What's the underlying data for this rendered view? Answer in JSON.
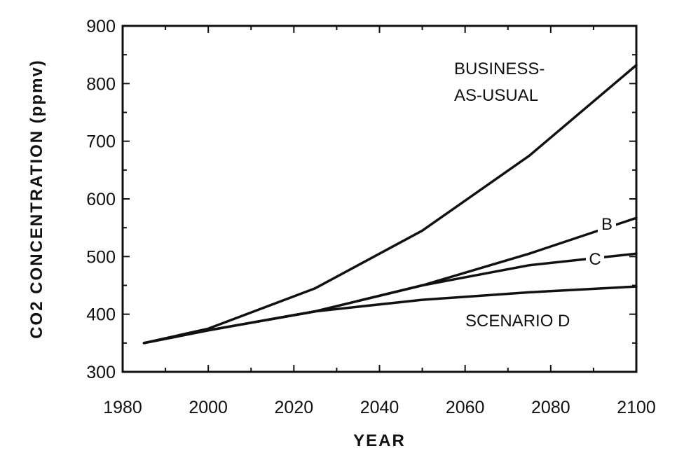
{
  "chart_data": {
    "type": "line",
    "title": "",
    "xlabel": "YEAR",
    "ylabel": "CO2  CONCENTRATION  (ppmv)",
    "xlim": [
      1980,
      2100
    ],
    "ylim": [
      300,
      900
    ],
    "xticks": [
      1980,
      2000,
      2020,
      2040,
      2060,
      2080,
      2100
    ],
    "yticks": [
      300,
      400,
      500,
      600,
      700,
      800,
      900
    ],
    "grid": false,
    "series": [
      {
        "name": "BUSINESS-AS-USUAL",
        "x": [
          1985,
          2000,
          2025,
          2050,
          2075,
          2100
        ],
        "y": [
          350,
          375,
          445,
          545,
          675,
          832
        ]
      },
      {
        "name": "B",
        "x": [
          1985,
          2000,
          2025,
          2050,
          2075,
          2100
        ],
        "y": [
          350,
          372,
          405,
          450,
          505,
          567
        ]
      },
      {
        "name": "C",
        "x": [
          1985,
          2000,
          2025,
          2050,
          2075,
          2100
        ],
        "y": [
          350,
          372,
          405,
          450,
          485,
          505
        ]
      },
      {
        "name": "SCENARIO D",
        "x": [
          1985,
          2000,
          2025,
          2050,
          2075,
          2100
        ],
        "y": [
          350,
          372,
          405,
          425,
          438,
          448
        ]
      }
    ],
    "annotations": [
      {
        "id": "bau1",
        "text": "BUSINESS-"
      },
      {
        "id": "bau2",
        "text": "AS-USUAL"
      },
      {
        "id": "b",
        "text": "B"
      },
      {
        "id": "c",
        "text": "C"
      },
      {
        "id": "d",
        "text": "SCENARIO D"
      }
    ]
  }
}
